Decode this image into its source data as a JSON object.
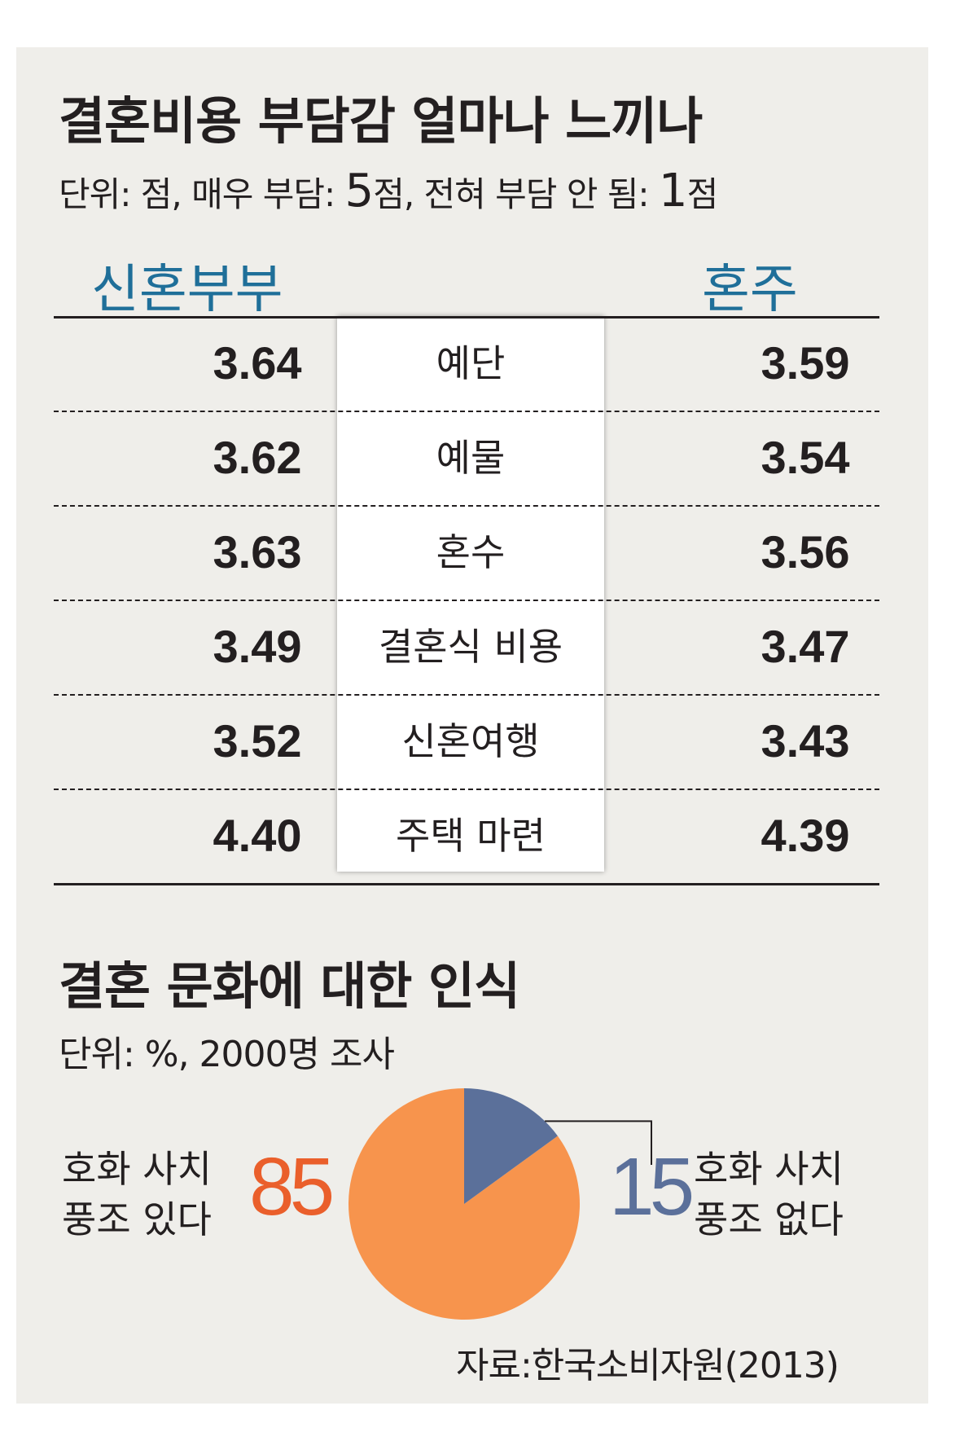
{
  "chart_data": [
    {
      "type": "table",
      "title": "결혼비용 부담감 얼마나 느끼나",
      "subtitle_parts": [
        "단위: 점, 매우 부담: ",
        "5",
        "점, 전혀 부담 안 됨: ",
        "1",
        "점"
      ],
      "columns": [
        "신혼부부",
        "혼주"
      ],
      "rows": [
        {
          "label": "예단",
          "left": "3.64",
          "right": "3.59"
        },
        {
          "label": "예물",
          "left": "3.62",
          "right": "3.54"
        },
        {
          "label": "혼수",
          "left": "3.63",
          "right": "3.56"
        },
        {
          "label": "결혼식 비용",
          "left": "3.49",
          "right": "3.47"
        },
        {
          "label": "신혼여행",
          "left": "3.52",
          "right": "3.43"
        },
        {
          "label": "주택 마련",
          "left": "4.40",
          "right": "4.39"
        }
      ]
    },
    {
      "type": "pie",
      "title": "결혼 문화에 대한 인식",
      "subtitle": "단위: %, 2000명 조사",
      "slices": [
        {
          "label_lines": [
            "호화 사치",
            "풍조 있다"
          ],
          "value": 85,
          "color": "#f7944d",
          "label_color": "#ea5f2b"
        },
        {
          "label_lines": [
            "호화 사치",
            "풍조 없다"
          ],
          "value": 15,
          "color": "#5b709a",
          "label_color": "#5b709a"
        }
      ]
    }
  ],
  "source": "자료:한국소비자원(2013)"
}
